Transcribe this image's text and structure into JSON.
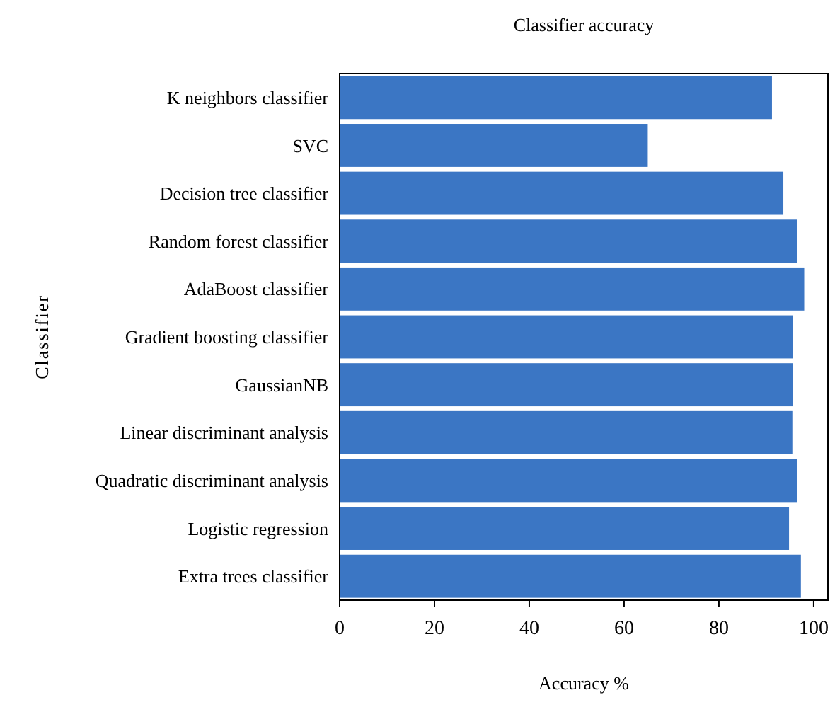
{
  "chart_data": {
    "type": "bar",
    "title": "Classifier accuracy",
    "xlabel": "Accuracy %",
    "ylabel": "Classifier",
    "orientation": "horizontal",
    "categories": [
      "K neighbors classifier",
      "SVC",
      "Decision tree classifier",
      "Random forest classifier",
      "AdaBoost classifier",
      "Gradient boosting classifier",
      "GaussianNB",
      "Linear discriminant analysis",
      "Quadratic discriminant analysis",
      "Logistic regression",
      "Extra trees classifier"
    ],
    "values": [
      91.2,
      65.0,
      93.6,
      96.5,
      98.0,
      95.6,
      95.6,
      95.5,
      96.5,
      94.8,
      97.3
    ],
    "color": "#3b76c4",
    "xlim": [
      0,
      103
    ],
    "xticks": [
      0,
      20,
      40,
      60,
      80,
      100
    ],
    "grid": false
  }
}
